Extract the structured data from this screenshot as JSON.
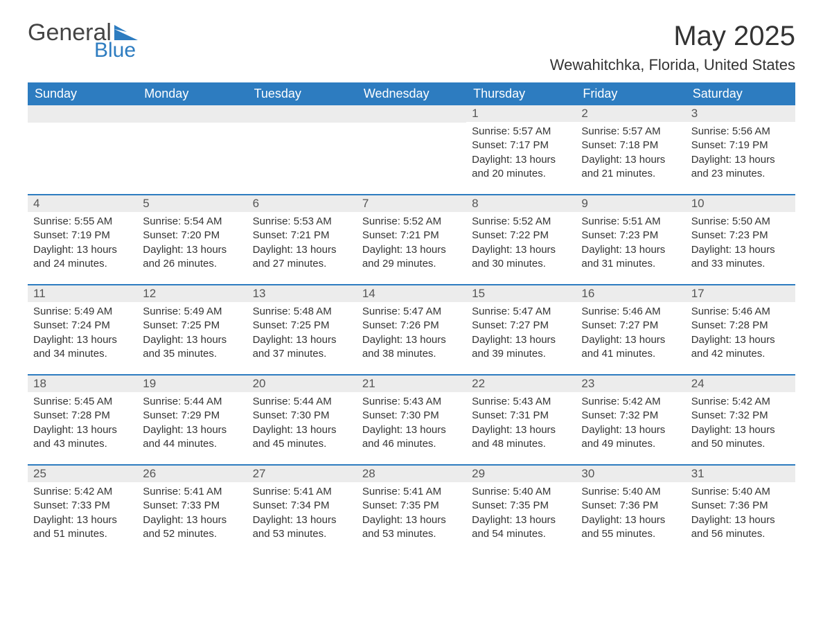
{
  "logo": {
    "word1": "General",
    "word2": "Blue",
    "flag_color": "#2d7cc0"
  },
  "title": "May 2025",
  "location": "Wewahitchka, Florida, United States",
  "colors": {
    "header_bg": "#2d7cc0",
    "header_text": "#ffffff",
    "daynum_bg": "#ececec",
    "daynum_text": "#555555",
    "body_text": "#333333",
    "week_border": "#2d7cc0",
    "page_bg": "#ffffff"
  },
  "fonts": {
    "title_size": 40,
    "location_size": 22,
    "dow_size": 18,
    "daynum_size": 17,
    "body_size": 15
  },
  "days_of_week": [
    "Sunday",
    "Monday",
    "Tuesday",
    "Wednesday",
    "Thursday",
    "Friday",
    "Saturday"
  ],
  "weeks": [
    [
      null,
      null,
      null,
      null,
      {
        "n": "1",
        "sr": "Sunrise: 5:57 AM",
        "ss": "Sunset: 7:17 PM",
        "dl": "Daylight: 13 hours and 20 minutes."
      },
      {
        "n": "2",
        "sr": "Sunrise: 5:57 AM",
        "ss": "Sunset: 7:18 PM",
        "dl": "Daylight: 13 hours and 21 minutes."
      },
      {
        "n": "3",
        "sr": "Sunrise: 5:56 AM",
        "ss": "Sunset: 7:19 PM",
        "dl": "Daylight: 13 hours and 23 minutes."
      }
    ],
    [
      {
        "n": "4",
        "sr": "Sunrise: 5:55 AM",
        "ss": "Sunset: 7:19 PM",
        "dl": "Daylight: 13 hours and 24 minutes."
      },
      {
        "n": "5",
        "sr": "Sunrise: 5:54 AM",
        "ss": "Sunset: 7:20 PM",
        "dl": "Daylight: 13 hours and 26 minutes."
      },
      {
        "n": "6",
        "sr": "Sunrise: 5:53 AM",
        "ss": "Sunset: 7:21 PM",
        "dl": "Daylight: 13 hours and 27 minutes."
      },
      {
        "n": "7",
        "sr": "Sunrise: 5:52 AM",
        "ss": "Sunset: 7:21 PM",
        "dl": "Daylight: 13 hours and 29 minutes."
      },
      {
        "n": "8",
        "sr": "Sunrise: 5:52 AM",
        "ss": "Sunset: 7:22 PM",
        "dl": "Daylight: 13 hours and 30 minutes."
      },
      {
        "n": "9",
        "sr": "Sunrise: 5:51 AM",
        "ss": "Sunset: 7:23 PM",
        "dl": "Daylight: 13 hours and 31 minutes."
      },
      {
        "n": "10",
        "sr": "Sunrise: 5:50 AM",
        "ss": "Sunset: 7:23 PM",
        "dl": "Daylight: 13 hours and 33 minutes."
      }
    ],
    [
      {
        "n": "11",
        "sr": "Sunrise: 5:49 AM",
        "ss": "Sunset: 7:24 PM",
        "dl": "Daylight: 13 hours and 34 minutes."
      },
      {
        "n": "12",
        "sr": "Sunrise: 5:49 AM",
        "ss": "Sunset: 7:25 PM",
        "dl": "Daylight: 13 hours and 35 minutes."
      },
      {
        "n": "13",
        "sr": "Sunrise: 5:48 AM",
        "ss": "Sunset: 7:25 PM",
        "dl": "Daylight: 13 hours and 37 minutes."
      },
      {
        "n": "14",
        "sr": "Sunrise: 5:47 AM",
        "ss": "Sunset: 7:26 PM",
        "dl": "Daylight: 13 hours and 38 minutes."
      },
      {
        "n": "15",
        "sr": "Sunrise: 5:47 AM",
        "ss": "Sunset: 7:27 PM",
        "dl": "Daylight: 13 hours and 39 minutes."
      },
      {
        "n": "16",
        "sr": "Sunrise: 5:46 AM",
        "ss": "Sunset: 7:27 PM",
        "dl": "Daylight: 13 hours and 41 minutes."
      },
      {
        "n": "17",
        "sr": "Sunrise: 5:46 AM",
        "ss": "Sunset: 7:28 PM",
        "dl": "Daylight: 13 hours and 42 minutes."
      }
    ],
    [
      {
        "n": "18",
        "sr": "Sunrise: 5:45 AM",
        "ss": "Sunset: 7:28 PM",
        "dl": "Daylight: 13 hours and 43 minutes."
      },
      {
        "n": "19",
        "sr": "Sunrise: 5:44 AM",
        "ss": "Sunset: 7:29 PM",
        "dl": "Daylight: 13 hours and 44 minutes."
      },
      {
        "n": "20",
        "sr": "Sunrise: 5:44 AM",
        "ss": "Sunset: 7:30 PM",
        "dl": "Daylight: 13 hours and 45 minutes."
      },
      {
        "n": "21",
        "sr": "Sunrise: 5:43 AM",
        "ss": "Sunset: 7:30 PM",
        "dl": "Daylight: 13 hours and 46 minutes."
      },
      {
        "n": "22",
        "sr": "Sunrise: 5:43 AM",
        "ss": "Sunset: 7:31 PM",
        "dl": "Daylight: 13 hours and 48 minutes."
      },
      {
        "n": "23",
        "sr": "Sunrise: 5:42 AM",
        "ss": "Sunset: 7:32 PM",
        "dl": "Daylight: 13 hours and 49 minutes."
      },
      {
        "n": "24",
        "sr": "Sunrise: 5:42 AM",
        "ss": "Sunset: 7:32 PM",
        "dl": "Daylight: 13 hours and 50 minutes."
      }
    ],
    [
      {
        "n": "25",
        "sr": "Sunrise: 5:42 AM",
        "ss": "Sunset: 7:33 PM",
        "dl": "Daylight: 13 hours and 51 minutes."
      },
      {
        "n": "26",
        "sr": "Sunrise: 5:41 AM",
        "ss": "Sunset: 7:33 PM",
        "dl": "Daylight: 13 hours and 52 minutes."
      },
      {
        "n": "27",
        "sr": "Sunrise: 5:41 AM",
        "ss": "Sunset: 7:34 PM",
        "dl": "Daylight: 13 hours and 53 minutes."
      },
      {
        "n": "28",
        "sr": "Sunrise: 5:41 AM",
        "ss": "Sunset: 7:35 PM",
        "dl": "Daylight: 13 hours and 53 minutes."
      },
      {
        "n": "29",
        "sr": "Sunrise: 5:40 AM",
        "ss": "Sunset: 7:35 PM",
        "dl": "Daylight: 13 hours and 54 minutes."
      },
      {
        "n": "30",
        "sr": "Sunrise: 5:40 AM",
        "ss": "Sunset: 7:36 PM",
        "dl": "Daylight: 13 hours and 55 minutes."
      },
      {
        "n": "31",
        "sr": "Sunrise: 5:40 AM",
        "ss": "Sunset: 7:36 PM",
        "dl": "Daylight: 13 hours and 56 minutes."
      }
    ]
  ]
}
